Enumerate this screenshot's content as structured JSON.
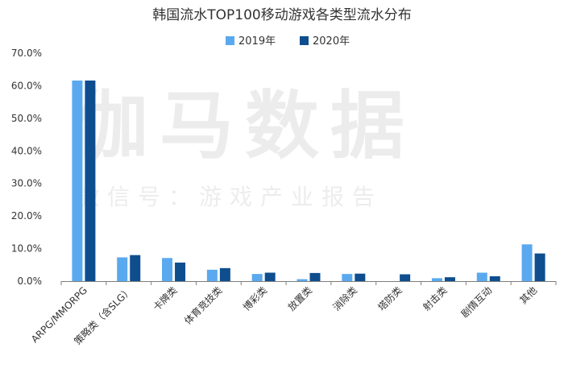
{
  "watermark": {
    "main": "伽马数据",
    "sub": "微信号：游戏产业报告"
  },
  "chart_data": {
    "type": "bar",
    "title": "韩国流水TOP100移动游戏各类型流水分布",
    "categories": [
      "ARPG/MMORPG",
      "策略类（含SLG）",
      "卡牌类",
      "体育竞技类",
      "博彩类",
      "放置类",
      "消除类",
      "塔防类",
      "射击类",
      "剧情互动",
      "其他"
    ],
    "series": [
      {
        "name": "2019年",
        "color": "#5aa9ef",
        "values": [
          61.6,
          7.3,
          7.1,
          3.5,
          2.2,
          0.6,
          2.2,
          0.0,
          0.9,
          2.6,
          11.3
        ]
      },
      {
        "name": "2020年",
        "color": "#0e4e8e",
        "values": [
          61.6,
          8.0,
          5.7,
          4.0,
          2.6,
          2.5,
          2.3,
          2.1,
          1.2,
          1.5,
          8.5
        ]
      }
    ],
    "ylim": [
      0,
      70
    ],
    "yticks": [
      "0.0%",
      "10.0%",
      "20.0%",
      "30.0%",
      "40.0%",
      "50.0%",
      "60.0%",
      "70.0%"
    ],
    "ytick_values": [
      0,
      10,
      20,
      30,
      40,
      50,
      60,
      70
    ],
    "xlabel": "",
    "ylabel": "",
    "grid": false,
    "legend_position": "top-center"
  }
}
